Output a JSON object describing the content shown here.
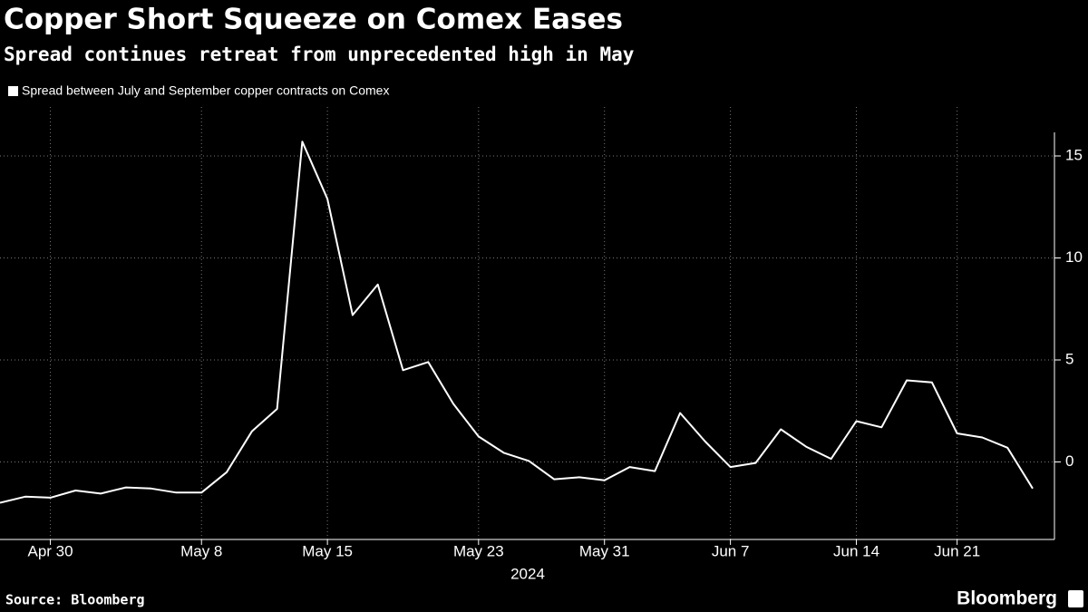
{
  "chart_data": {
    "type": "line",
    "title": "Copper Short Squeeze on Comex Eases",
    "subtitle": "Spread continues retreat from unprecedented high in May",
    "categories": [
      null,
      null,
      "Apr 30",
      null,
      null,
      null,
      null,
      null,
      "May 8",
      null,
      null,
      null,
      null,
      "May 15",
      null,
      null,
      null,
      null,
      null,
      "May 23",
      null,
      null,
      null,
      null,
      "May 31",
      null,
      null,
      null,
      null,
      "Jun 7",
      null,
      null,
      null,
      null,
      "Jun 14",
      null,
      null,
      null,
      "Jun 21",
      null,
      null,
      null
    ],
    "x_label": "2024",
    "series": [
      {
        "name": "Spread between July and September copper contracts on Comex",
        "color": "#ffffff",
        "values": [
          -2.0,
          -1.7,
          -1.75,
          -1.4,
          -1.55,
          -1.25,
          -1.3,
          -1.5,
          -1.5,
          -0.5,
          1.5,
          2.6,
          15.7,
          12.9,
          7.2,
          8.7,
          4.5,
          4.9,
          2.85,
          1.25,
          0.45,
          0.05,
          -0.85,
          -0.75,
          -0.9,
          -0.25,
          -0.45,
          2.4,
          1.0,
          -0.25,
          -0.05,
          1.6,
          0.75,
          0.15,
          2.0,
          1.7,
          4.0,
          3.9,
          1.4,
          1.2,
          0.7,
          -1.3
        ]
      }
    ],
    "ylim": [
      -3.8,
      17.4
    ],
    "yticks": [
      0,
      5,
      10,
      15
    ],
    "grid": true,
    "source": "Source: Bloomberg",
    "brand": "Bloomberg"
  }
}
